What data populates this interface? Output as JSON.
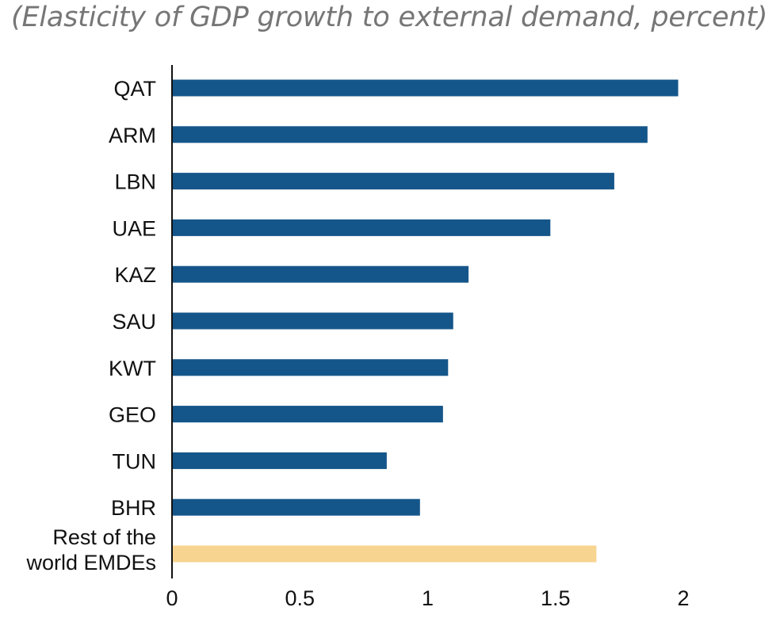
{
  "chart_data": {
    "type": "bar",
    "orientation": "horizontal",
    "title": "(Elasticity of GDP growth to external demand, percent)",
    "xlabel": "",
    "ylabel": "",
    "categories": [
      "QAT",
      "ARM",
      "LBN",
      "UAE",
      "KAZ",
      "SAU",
      "KWT",
      "GEO",
      "TUN",
      "BHR",
      "Rest of the world EMDEs"
    ],
    "category_lines": [
      [
        "QAT"
      ],
      [
        "ARM"
      ],
      [
        "LBN"
      ],
      [
        "UAE"
      ],
      [
        "KAZ"
      ],
      [
        "SAU"
      ],
      [
        "KWT"
      ],
      [
        "GEO"
      ],
      [
        "TUN"
      ],
      [
        "BHR"
      ],
      [
        "Rest of the",
        "world EMDEs"
      ]
    ],
    "values": [
      1.98,
      1.86,
      1.73,
      1.48,
      1.16,
      1.1,
      1.08,
      1.06,
      0.84,
      0.97,
      1.66
    ],
    "bar_colors": [
      "#15568a",
      "#15568a",
      "#15568a",
      "#15568a",
      "#15568a",
      "#15568a",
      "#15568a",
      "#15568a",
      "#15568a",
      "#15568a",
      "#f7d48f"
    ],
    "xlim": [
      0,
      2
    ],
    "xticks": [
      0,
      0.5,
      1,
      1.5,
      2
    ],
    "xtick_labels": [
      "0",
      "0.5",
      "1",
      "1.5",
      "2"
    ],
    "grid": false,
    "legend": "none"
  }
}
